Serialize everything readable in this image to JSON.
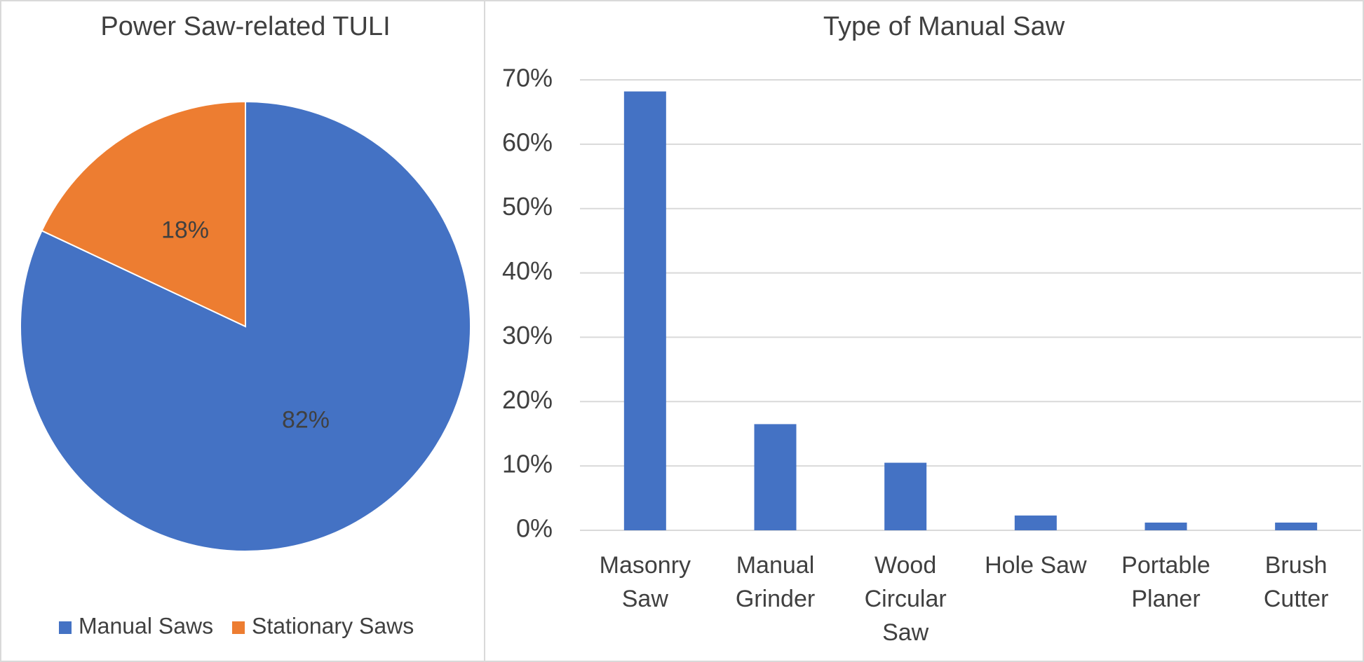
{
  "chart_data": [
    {
      "type": "pie",
      "title": "Power Saw-related TULI",
      "categories": [
        "Manual Saws",
        "Stationary Saws"
      ],
      "values": [
        82,
        18
      ],
      "value_labels": [
        "82%",
        "18%"
      ],
      "colors": [
        "#4472c4",
        "#ed7d31"
      ],
      "legend": "bottom"
    },
    {
      "type": "bar",
      "title": "Type of Manual Saw",
      "categories": [
        "Masonry Saw",
        "Manual Grinder",
        "Wood Circular Saw",
        "Hole Saw",
        "Portable Planer",
        "Brush Cutter"
      ],
      "values": [
        68.2,
        16.5,
        10.5,
        2.3,
        1.2,
        1.2
      ],
      "color": "#4472c4",
      "ylim": [
        0,
        70
      ],
      "yticks": [
        {
          "value": 0,
          "label": "0%"
        },
        {
          "value": 10,
          "label": "10%"
        },
        {
          "value": 20,
          "label": "20%"
        },
        {
          "value": 30,
          "label": "30%"
        },
        {
          "value": 40,
          "label": "40%"
        },
        {
          "value": 50,
          "label": "50%"
        },
        {
          "value": 60,
          "label": "60%"
        },
        {
          "value": 70,
          "label": "70%"
        }
      ],
      "grid": true
    }
  ]
}
